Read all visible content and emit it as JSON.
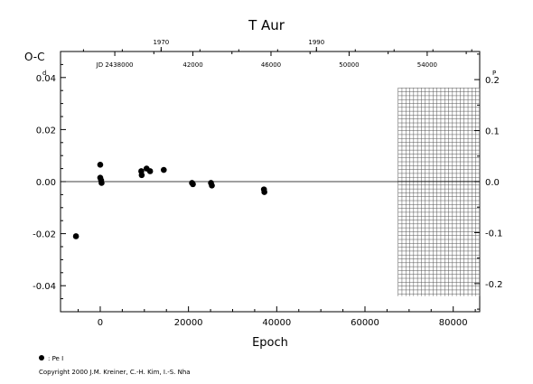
{
  "chart_data": {
    "type": "scatter",
    "title": "T Aur",
    "ylabel": "O-C",
    "ylabel_unit_left": "d",
    "ylabel_unit_right": "P",
    "xlabel": "Epoch",
    "xlim": [
      -9000,
      86000
    ],
    "ylim": [
      -0.05,
      0.05
    ],
    "x_ticks": [
      {
        "value": 0,
        "label": "0"
      },
      {
        "value": 20000,
        "label": "20000"
      },
      {
        "value": 40000,
        "label": "40000"
      },
      {
        "value": 60000,
        "label": "60000"
      },
      {
        "value": 80000,
        "label": "80000"
      }
    ],
    "y_ticks_left": [
      {
        "value": 0.04,
        "label": "0.04"
      },
      {
        "value": 0.02,
        "label": "0.02"
      },
      {
        "value": 0.0,
        "label": "0.00"
      },
      {
        "value": -0.02,
        "label": "-0.02"
      },
      {
        "value": -0.04,
        "label": "-0.04"
      }
    ],
    "y_ticks_right": [
      {
        "value": 0.0392,
        "label": "0.2"
      },
      {
        "value": 0.0196,
        "label": "0.1"
      },
      {
        "value": 0.0,
        "label": "0.0"
      },
      {
        "value": -0.0196,
        "label": "-0.1"
      },
      {
        "value": -0.0392,
        "label": "-0.2"
      }
    ],
    "top_jd_ticks": [
      {
        "value": 3300,
        "label": "JD 2438000"
      },
      {
        "value": 21000,
        "label": "42000"
      },
      {
        "value": 38700,
        "label": "46000"
      },
      {
        "value": 56400,
        "label": "50000"
      },
      {
        "value": 74100,
        "label": "54000"
      }
    ],
    "top_year_ticks": [
      {
        "value": 13800,
        "label": "1970"
      },
      {
        "value": 49000,
        "label": "1990"
      }
    ],
    "hatched_region": {
      "x_start": 67500,
      "x_end": 86000
    },
    "series": [
      {
        "name": "",
        "marker": "filled-circle",
        "points": [
          {
            "x": -5500,
            "y": -0.021
          },
          {
            "x": 0,
            "y": 0.0065
          },
          {
            "x": 0,
            "y": 0.0015
          },
          {
            "x": 200,
            "y": 0.0005
          },
          {
            "x": 300,
            "y": -0.0005
          },
          {
            "x": 9300,
            "y": 0.004
          },
          {
            "x": 9400,
            "y": 0.0025
          },
          {
            "x": 10500,
            "y": 0.005
          },
          {
            "x": 11300,
            "y": 0.004
          },
          {
            "x": 14400,
            "y": 0.0045
          },
          {
            "x": 20800,
            "y": -0.0005
          },
          {
            "x": 21000,
            "y": -0.001
          },
          {
            "x": 25100,
            "y": -0.0005
          },
          {
            "x": 25300,
            "y": -0.0015
          },
          {
            "x": 37100,
            "y": -0.003
          },
          {
            "x": 37200,
            "y": -0.004
          }
        ]
      }
    ],
    "legend": {
      "symbol": "filled-circle",
      "label": ": Pe I"
    },
    "footer": "Copyright 2000 J.M. Kreiner, C.-H. Kim, I.-S. Nha"
  }
}
